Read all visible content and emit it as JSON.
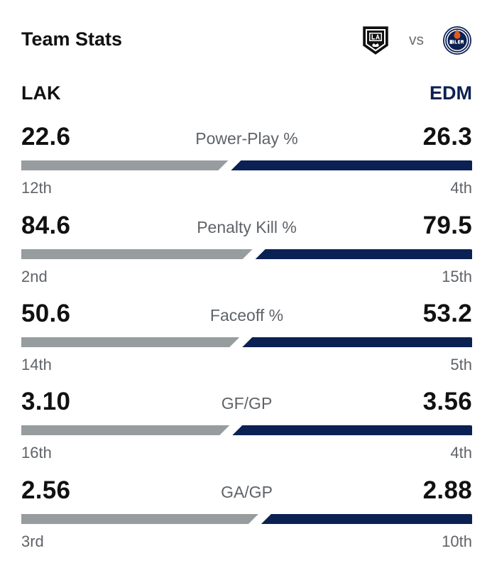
{
  "header": {
    "title": "Team Stats",
    "vs_label": "vs",
    "left_logo": "kings-crown-logo-icon",
    "right_logo": "oilers-drop-logo-icon"
  },
  "teams": {
    "left": {
      "abbr": "LAK",
      "bar_color": "#979c9f",
      "text_color": "#111111"
    },
    "right": {
      "abbr": "EDM",
      "bar_color": "#0b2153",
      "text_color": "#0b2153"
    }
  },
  "stats": [
    {
      "label": "Power-Play %",
      "left_value": "22.6",
      "right_value": "26.3",
      "left_rank": "12th",
      "right_rank": "4th",
      "left_share": 0.462
    },
    {
      "label": "Penalty Kill %",
      "left_value": "84.6",
      "right_value": "79.5",
      "left_rank": "2nd",
      "right_rank": "15th",
      "left_share": 0.516
    },
    {
      "label": "Faceoff %",
      "left_value": "50.6",
      "right_value": "53.2",
      "left_rank": "14th",
      "right_rank": "5th",
      "left_share": 0.487
    },
    {
      "label": "GF/GP",
      "left_value": "3.10",
      "right_value": "3.56",
      "left_rank": "16th",
      "right_rank": "4th",
      "left_share": 0.465
    },
    {
      "label": "GA/GP",
      "left_value": "2.56",
      "right_value": "2.88",
      "left_rank": "3rd",
      "right_rank": "10th",
      "left_share": 0.529
    }
  ]
}
